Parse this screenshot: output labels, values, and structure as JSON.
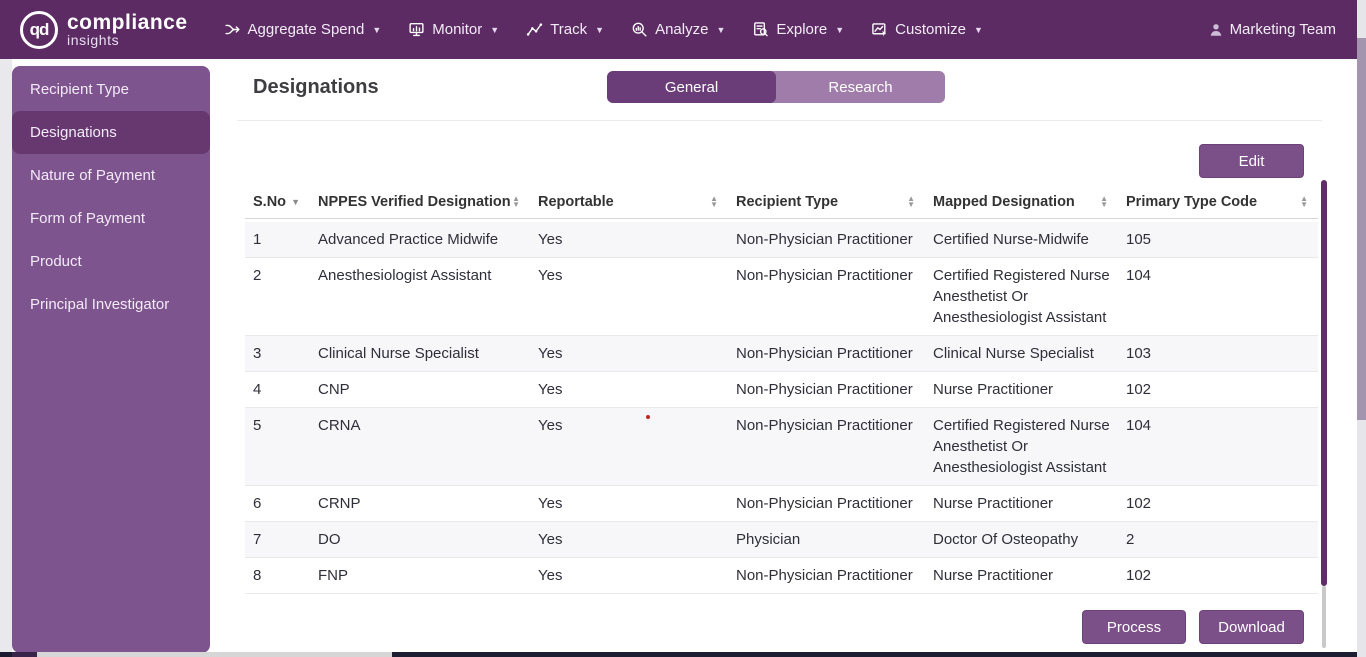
{
  "nav": {
    "logo": {
      "monogram": "qd",
      "title": "compliance",
      "subtitle": "insights"
    },
    "items": [
      {
        "label": "Aggregate Spend",
        "icon": "aggregate-spend-icon"
      },
      {
        "label": "Monitor",
        "icon": "monitor-icon"
      },
      {
        "label": "Track",
        "icon": "track-icon"
      },
      {
        "label": "Analyze",
        "icon": "analyze-icon"
      },
      {
        "label": "Explore",
        "icon": "explore-icon"
      },
      {
        "label": "Customize",
        "icon": "customize-icon"
      }
    ],
    "user": {
      "label": "Marketing Team",
      "icon": "user-icon"
    }
  },
  "sidebar": {
    "items": [
      {
        "label": "Recipient Type",
        "active": false
      },
      {
        "label": "Designations",
        "active": true
      },
      {
        "label": "Nature of Payment",
        "active": false
      },
      {
        "label": "Form of Payment",
        "active": false
      },
      {
        "label": "Product",
        "active": false
      },
      {
        "label": "Principal Investigator",
        "active": false
      }
    ]
  },
  "main": {
    "title": "Designations",
    "tabs": [
      {
        "label": "General",
        "active": true
      },
      {
        "label": "Research",
        "active": false
      }
    ],
    "edit_button": "Edit",
    "process_button": "Process",
    "download_button": "Download",
    "table": {
      "columns": [
        "S.No",
        "NPPES Verified Designation",
        "Reportable",
        "Recipient Type",
        "Mapped Designation",
        "Primary Type Code"
      ],
      "rows": [
        {
          "sno": "1",
          "designation": "Advanced Practice Midwife",
          "reportable": "Yes",
          "recipient_type": "Non-Physician Practitioner",
          "mapped": "Certified Nurse-Midwife",
          "code": "105"
        },
        {
          "sno": "2",
          "designation": "Anesthesiologist Assistant",
          "reportable": "Yes",
          "recipient_type": "Non-Physician Practitioner",
          "mapped": "Certified Registered Nurse Anesthetist Or Anesthesiologist Assistant",
          "code": "104"
        },
        {
          "sno": "3",
          "designation": "Clinical Nurse Specialist",
          "reportable": "Yes",
          "recipient_type": "Non-Physician Practitioner",
          "mapped": "Clinical Nurse Specialist",
          "code": "103"
        },
        {
          "sno": "4",
          "designation": "CNP",
          "reportable": "Yes",
          "recipient_type": "Non-Physician Practitioner",
          "mapped": "Nurse Practitioner",
          "code": "102"
        },
        {
          "sno": "5",
          "designation": "CRNA",
          "reportable": "Yes",
          "recipient_type": "Non-Physician Practitioner",
          "mapped": "Certified Registered Nurse Anesthetist Or Anesthesiologist Assistant",
          "code": "104"
        },
        {
          "sno": "6",
          "designation": "CRNP",
          "reportable": "Yes",
          "recipient_type": "Non-Physician Practitioner",
          "mapped": "Nurse Practitioner",
          "code": "102"
        },
        {
          "sno": "7",
          "designation": "DO",
          "reportable": "Yes",
          "recipient_type": "Physician",
          "mapped": "Doctor Of Osteopathy",
          "code": "2"
        },
        {
          "sno": "8",
          "designation": "FNP",
          "reportable": "Yes",
          "recipient_type": "Non-Physician Practitioner",
          "mapped": "Nurse Practitioner",
          "code": "102"
        }
      ]
    }
  },
  "colors": {
    "nav_background": "#5c2b64",
    "sidebar_background": "#7d548d",
    "sidebar_active": "#66386f",
    "tab_active": "#6b3d78",
    "tab_inactive": "#a07cab",
    "button": "#7b4f87",
    "row_stripe": "#f7f7f9",
    "scroll_thumb_purple": "#5e2d6a",
    "red_dot": "#c2271f"
  }
}
